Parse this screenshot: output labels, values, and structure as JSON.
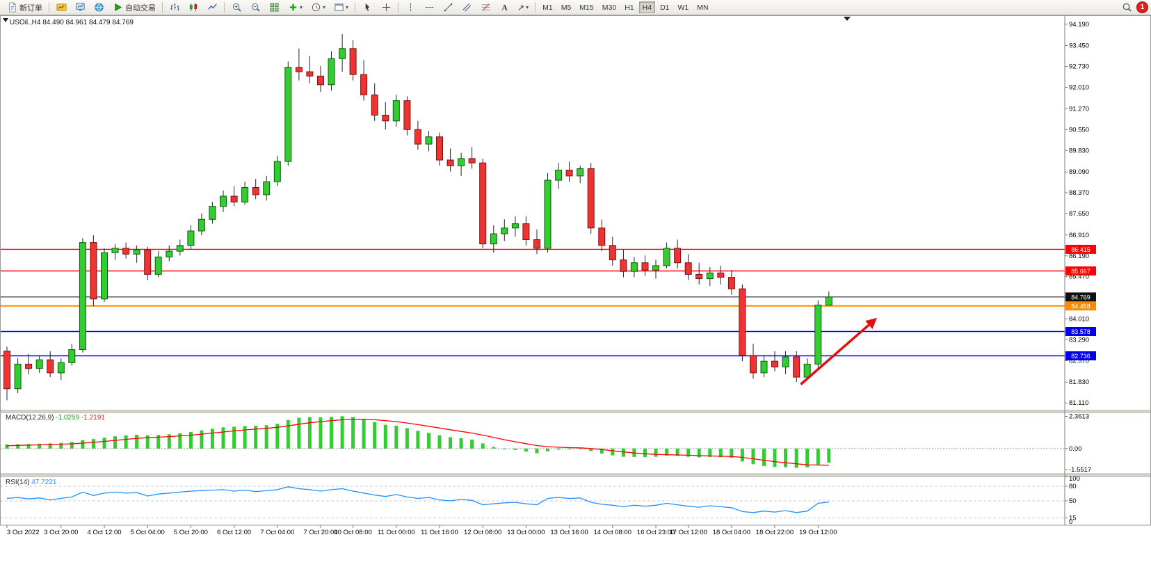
{
  "toolbar": {
    "new_order": "新订单",
    "autotrading": "自动交易",
    "timeframes": [
      "M1",
      "M5",
      "M15",
      "M30",
      "H1",
      "H4",
      "D1",
      "W1",
      "MN"
    ],
    "active_timeframe": "H4",
    "notification_count": "1"
  },
  "chart_data": {
    "type": "candlestick",
    "title": "USOil.,H4",
    "ohlc_text": "84.490 84.961 84.479 84.769",
    "ylim": [
      80.85,
      94.45
    ],
    "price_scale_labels": [
      "94.190",
      "93.450",
      "92.730",
      "92.010",
      "91.270",
      "90.550",
      "89.830",
      "89.090",
      "88.370",
      "87.650",
      "86.910",
      "86.190",
      "85.470",
      "84.750",
      "84.010",
      "83.290",
      "82.570",
      "81.830",
      "81.110"
    ],
    "time_labels": [
      {
        "text": "3 Oct 2022",
        "i": 0
      },
      {
        "text": "3 Oct 20:00",
        "i": 5
      },
      {
        "text": "4 Oct 12:00",
        "i": 9
      },
      {
        "text": "5 Oct 04:00",
        "i": 13
      },
      {
        "text": "5 Oct 20:00",
        "i": 17
      },
      {
        "text": "6 Oct 12:00",
        "i": 21
      },
      {
        "text": "7 Oct 04:00",
        "i": 25
      },
      {
        "text": "7 Oct 20:00",
        "i": 29
      },
      {
        "text": "10 Oct 08:00",
        "i": 32
      },
      {
        "text": "11 Oct 00:00",
        "i": 36
      },
      {
        "text": "11 Oct 16:00",
        "i": 40
      },
      {
        "text": "12 Oct 08:00",
        "i": 44
      },
      {
        "text": "13 Oct 00:00",
        "i": 48
      },
      {
        "text": "13 Oct 16:00",
        "i": 52
      },
      {
        "text": "14 Oct 08:00",
        "i": 56
      },
      {
        "text": "16 Oct 23:00",
        "i": 60
      },
      {
        "text": "17 Oct 12:00",
        "i": 63
      },
      {
        "text": "18 Oct 04:00",
        "i": 67
      },
      {
        "text": "18 Oct 22:00",
        "i": 71
      },
      {
        "text": "19 Oct 12:00",
        "i": 75
      }
    ],
    "candles": [
      [
        82.9,
        83.05,
        81.2,
        81.6
      ],
      [
        81.6,
        82.65,
        81.45,
        82.45
      ],
      [
        82.45,
        82.8,
        82.1,
        82.3
      ],
      [
        82.3,
        82.75,
        82.15,
        82.6
      ],
      [
        82.6,
        82.9,
        82.0,
        82.15
      ],
      [
        82.15,
        82.65,
        81.9,
        82.5
      ],
      [
        82.5,
        83.15,
        82.4,
        82.95
      ],
      [
        82.95,
        86.8,
        82.85,
        86.65
      ],
      [
        86.65,
        86.9,
        84.45,
        84.7
      ],
      [
        84.7,
        86.45,
        84.6,
        86.3
      ],
      [
        86.3,
        86.6,
        86.05,
        86.45
      ],
      [
        86.45,
        86.65,
        86.1,
        86.25
      ],
      [
        86.25,
        86.55,
        85.95,
        86.4
      ],
      [
        86.4,
        86.5,
        85.35,
        85.55
      ],
      [
        85.55,
        86.35,
        85.45,
        86.15
      ],
      [
        86.15,
        86.55,
        86.0,
        86.35
      ],
      [
        86.35,
        86.75,
        86.2,
        86.55
      ],
      [
        86.55,
        87.25,
        86.4,
        87.05
      ],
      [
        87.05,
        87.65,
        86.9,
        87.45
      ],
      [
        87.45,
        88.05,
        87.3,
        87.9
      ],
      [
        87.9,
        88.45,
        87.7,
        88.25
      ],
      [
        88.25,
        88.6,
        87.9,
        88.05
      ],
      [
        88.05,
        88.75,
        87.95,
        88.55
      ],
      [
        88.55,
        88.85,
        88.15,
        88.3
      ],
      [
        88.3,
        88.95,
        88.1,
        88.75
      ],
      [
        88.75,
        89.65,
        88.6,
        89.45
      ],
      [
        89.45,
        92.9,
        89.3,
        92.7
      ],
      [
        92.7,
        93.35,
        92.25,
        92.55
      ],
      [
        92.55,
        93.1,
        92.15,
        92.4
      ],
      [
        92.4,
        92.75,
        91.85,
        92.1
      ],
      [
        92.1,
        93.25,
        91.9,
        93.0
      ],
      [
        93.0,
        93.85,
        92.55,
        93.35
      ],
      [
        93.35,
        93.64,
        92.25,
        92.45
      ],
      [
        92.45,
        92.95,
        91.55,
        91.75
      ],
      [
        91.75,
        92.15,
        90.85,
        91.05
      ],
      [
        91.05,
        91.5,
        90.55,
        90.85
      ],
      [
        90.85,
        91.75,
        90.65,
        91.55
      ],
      [
        91.55,
        91.7,
        90.35,
        90.55
      ],
      [
        90.55,
        90.85,
        89.85,
        90.05
      ],
      [
        90.05,
        90.5,
        89.8,
        90.3
      ],
      [
        90.3,
        90.45,
        89.3,
        89.5
      ],
      [
        89.5,
        89.9,
        89.1,
        89.3
      ],
      [
        89.3,
        89.75,
        88.95,
        89.55
      ],
      [
        89.55,
        89.95,
        89.2,
        89.4
      ],
      [
        89.4,
        89.55,
        86.45,
        86.6
      ],
      [
        86.6,
        87.25,
        86.3,
        86.95
      ],
      [
        86.95,
        87.45,
        86.7,
        87.15
      ],
      [
        87.15,
        87.55,
        86.85,
        87.3
      ],
      [
        87.3,
        87.55,
        86.55,
        86.75
      ],
      [
        86.75,
        87.1,
        86.25,
        86.45
      ],
      [
        86.45,
        89.05,
        86.3,
        88.8
      ],
      [
        88.8,
        89.4,
        88.5,
        89.15
      ],
      [
        89.15,
        89.45,
        88.75,
        88.95
      ],
      [
        88.95,
        89.3,
        88.7,
        89.2
      ],
      [
        89.2,
        89.4,
        86.95,
        87.15
      ],
      [
        87.15,
        87.45,
        86.35,
        86.55
      ],
      [
        86.55,
        86.85,
        85.85,
        86.05
      ],
      [
        86.05,
        86.4,
        85.45,
        85.65
      ],
      [
        85.65,
        86.15,
        85.45,
        85.95
      ],
      [
        85.95,
        86.2,
        85.5,
        85.7
      ],
      [
        85.7,
        86.05,
        85.4,
        85.85
      ],
      [
        85.85,
        86.65,
        85.75,
        86.45
      ],
      [
        86.45,
        86.75,
        85.75,
        85.95
      ],
      [
        85.95,
        86.25,
        85.35,
        85.55
      ],
      [
        85.55,
        85.95,
        85.2,
        85.4
      ],
      [
        85.4,
        85.8,
        85.15,
        85.6
      ],
      [
        85.6,
        85.85,
        85.2,
        85.45
      ],
      [
        85.45,
        85.7,
        84.85,
        85.05
      ],
      [
        85.05,
        85.2,
        82.55,
        82.75
      ],
      [
        82.75,
        83.15,
        81.95,
        82.15
      ],
      [
        82.15,
        82.75,
        82.0,
        82.55
      ],
      [
        82.55,
        82.9,
        82.2,
        82.35
      ],
      [
        82.35,
        82.9,
        82.1,
        82.7
      ],
      [
        82.7,
        82.9,
        81.83,
        82.0
      ],
      [
        82.0,
        82.65,
        81.9,
        82.45
      ],
      [
        82.45,
        84.65,
        82.3,
        84.49
      ],
      [
        84.49,
        84.961,
        84.479,
        84.769
      ]
    ],
    "hlines": [
      {
        "value": 86.415,
        "label": "86.415",
        "color": "#ff0000",
        "width": 1.4
      },
      {
        "value": 85.667,
        "label": "85.667",
        "color": "#ff0000",
        "width": 1.4
      },
      {
        "value": 84.769,
        "label": "84.769",
        "color": "#111111",
        "width": 1
      },
      {
        "value": 84.458,
        "label": "84.458",
        "color": "#ff8a00",
        "width": 2
      },
      {
        "value": 83.578,
        "label": "83.578",
        "color": "#0000ee",
        "width": 1.4
      },
      {
        "value": 82.736,
        "label": "82.736",
        "color": "#0000ee",
        "width": 1.4
      }
    ],
    "arrow": {
      "i1": 73.4,
      "p1": 81.75,
      "i2": 80.3,
      "p2": 84.0,
      "color": "#dd1111"
    },
    "colors": {
      "bull": "#33cc33",
      "bull_edge": "#0c5c0c",
      "bear": "#ee3333",
      "bear_edge": "#7a1111",
      "wick": "#222222"
    },
    "indicators": {
      "macd": {
        "name": "MACD(12,26,9)",
        "value_main": "-1.0259",
        "value_signal": "-1.2191",
        "ylim": [
          -1.85,
          2.65
        ],
        "scale": [
          {
            "label": "2.3613",
            "value": 2.3613
          },
          {
            "label": "0.00",
            "value": 0
          },
          {
            "label": "-1.5517",
            "value": -1.5517
          }
        ],
        "hist_color": "#33cc33",
        "signal_color": "#ff0000",
        "hist": [
          0.3,
          0.32,
          0.34,
          0.36,
          0.38,
          0.42,
          0.48,
          0.62,
          0.7,
          0.8,
          0.9,
          0.97,
          1.02,
          0.98,
          1.0,
          1.05,
          1.12,
          1.22,
          1.34,
          1.46,
          1.56,
          1.6,
          1.66,
          1.68,
          1.72,
          1.82,
          2.1,
          2.26,
          2.32,
          2.3,
          2.33,
          2.38,
          2.32,
          2.15,
          1.95,
          1.75,
          1.68,
          1.5,
          1.3,
          1.15,
          0.98,
          0.84,
          0.76,
          0.66,
          0.38,
          0.12,
          -0.02,
          -0.1,
          -0.22,
          -0.34,
          -0.2,
          -0.08,
          -0.05,
          -0.02,
          -0.18,
          -0.36,
          -0.5,
          -0.6,
          -0.62,
          -0.63,
          -0.6,
          -0.52,
          -0.54,
          -0.6,
          -0.65,
          -0.62,
          -0.64,
          -0.68,
          -0.95,
          -1.15,
          -1.28,
          -1.35,
          -1.38,
          -1.42,
          -1.38,
          -1.18,
          -1.0259
        ],
        "signal": [
          0.2,
          0.23,
          0.25,
          0.27,
          0.29,
          0.32,
          0.35,
          0.4,
          0.46,
          0.53,
          0.6,
          0.68,
          0.75,
          0.8,
          0.84,
          0.88,
          0.93,
          0.99,
          1.06,
          1.14,
          1.22,
          1.3,
          1.37,
          1.43,
          1.49,
          1.56,
          1.67,
          1.79,
          1.9,
          1.98,
          2.05,
          2.12,
          2.16,
          2.16,
          2.12,
          2.05,
          1.98,
          1.88,
          1.76,
          1.64,
          1.51,
          1.38,
          1.26,
          1.14,
          0.99,
          0.82,
          0.65,
          0.5,
          0.36,
          0.22,
          0.14,
          0.1,
          0.07,
          0.05,
          0.0,
          -0.07,
          -0.16,
          -0.25,
          -0.32,
          -0.38,
          -0.43,
          -0.45,
          -0.47,
          -0.49,
          -0.52,
          -0.54,
          -0.56,
          -0.58,
          -0.65,
          -0.75,
          -0.86,
          -0.96,
          -1.04,
          -1.12,
          -1.19,
          -1.21,
          -1.2191
        ]
      },
      "rsi": {
        "name": "RSI(14)",
        "value": "47.7221",
        "ylim": [
          0,
          100
        ],
        "scale": [
          {
            "label": "100",
            "value": 100
          },
          {
            "label": "80",
            "value": 80
          },
          {
            "label": "50",
            "value": 50
          },
          {
            "label": "15",
            "value": 15
          },
          {
            "label": "0",
            "value": 0
          }
        ],
        "levels": [
          80,
          50,
          15
        ],
        "line_color": "#1E90FF",
        "values": [
          55,
          57,
          54,
          56,
          52,
          55,
          58,
          68,
          61,
          66,
          68,
          66,
          67,
          60,
          64,
          66,
          68,
          70,
          71,
          72,
          73,
          70,
          72,
          69,
          71,
          73,
          79,
          75,
          73,
          70,
          73,
          75,
          70,
          66,
          62,
          59,
          63,
          58,
          55,
          57,
          52,
          50,
          53,
          51,
          42,
          44,
          46,
          47,
          44,
          42,
          55,
          57,
          55,
          56,
          47,
          43,
          41,
          38,
          41,
          39,
          41,
          45,
          42,
          39,
          37,
          40,
          38,
          36,
          28,
          26,
          29,
          27,
          30,
          26,
          29,
          45,
          47.72
        ]
      }
    }
  }
}
